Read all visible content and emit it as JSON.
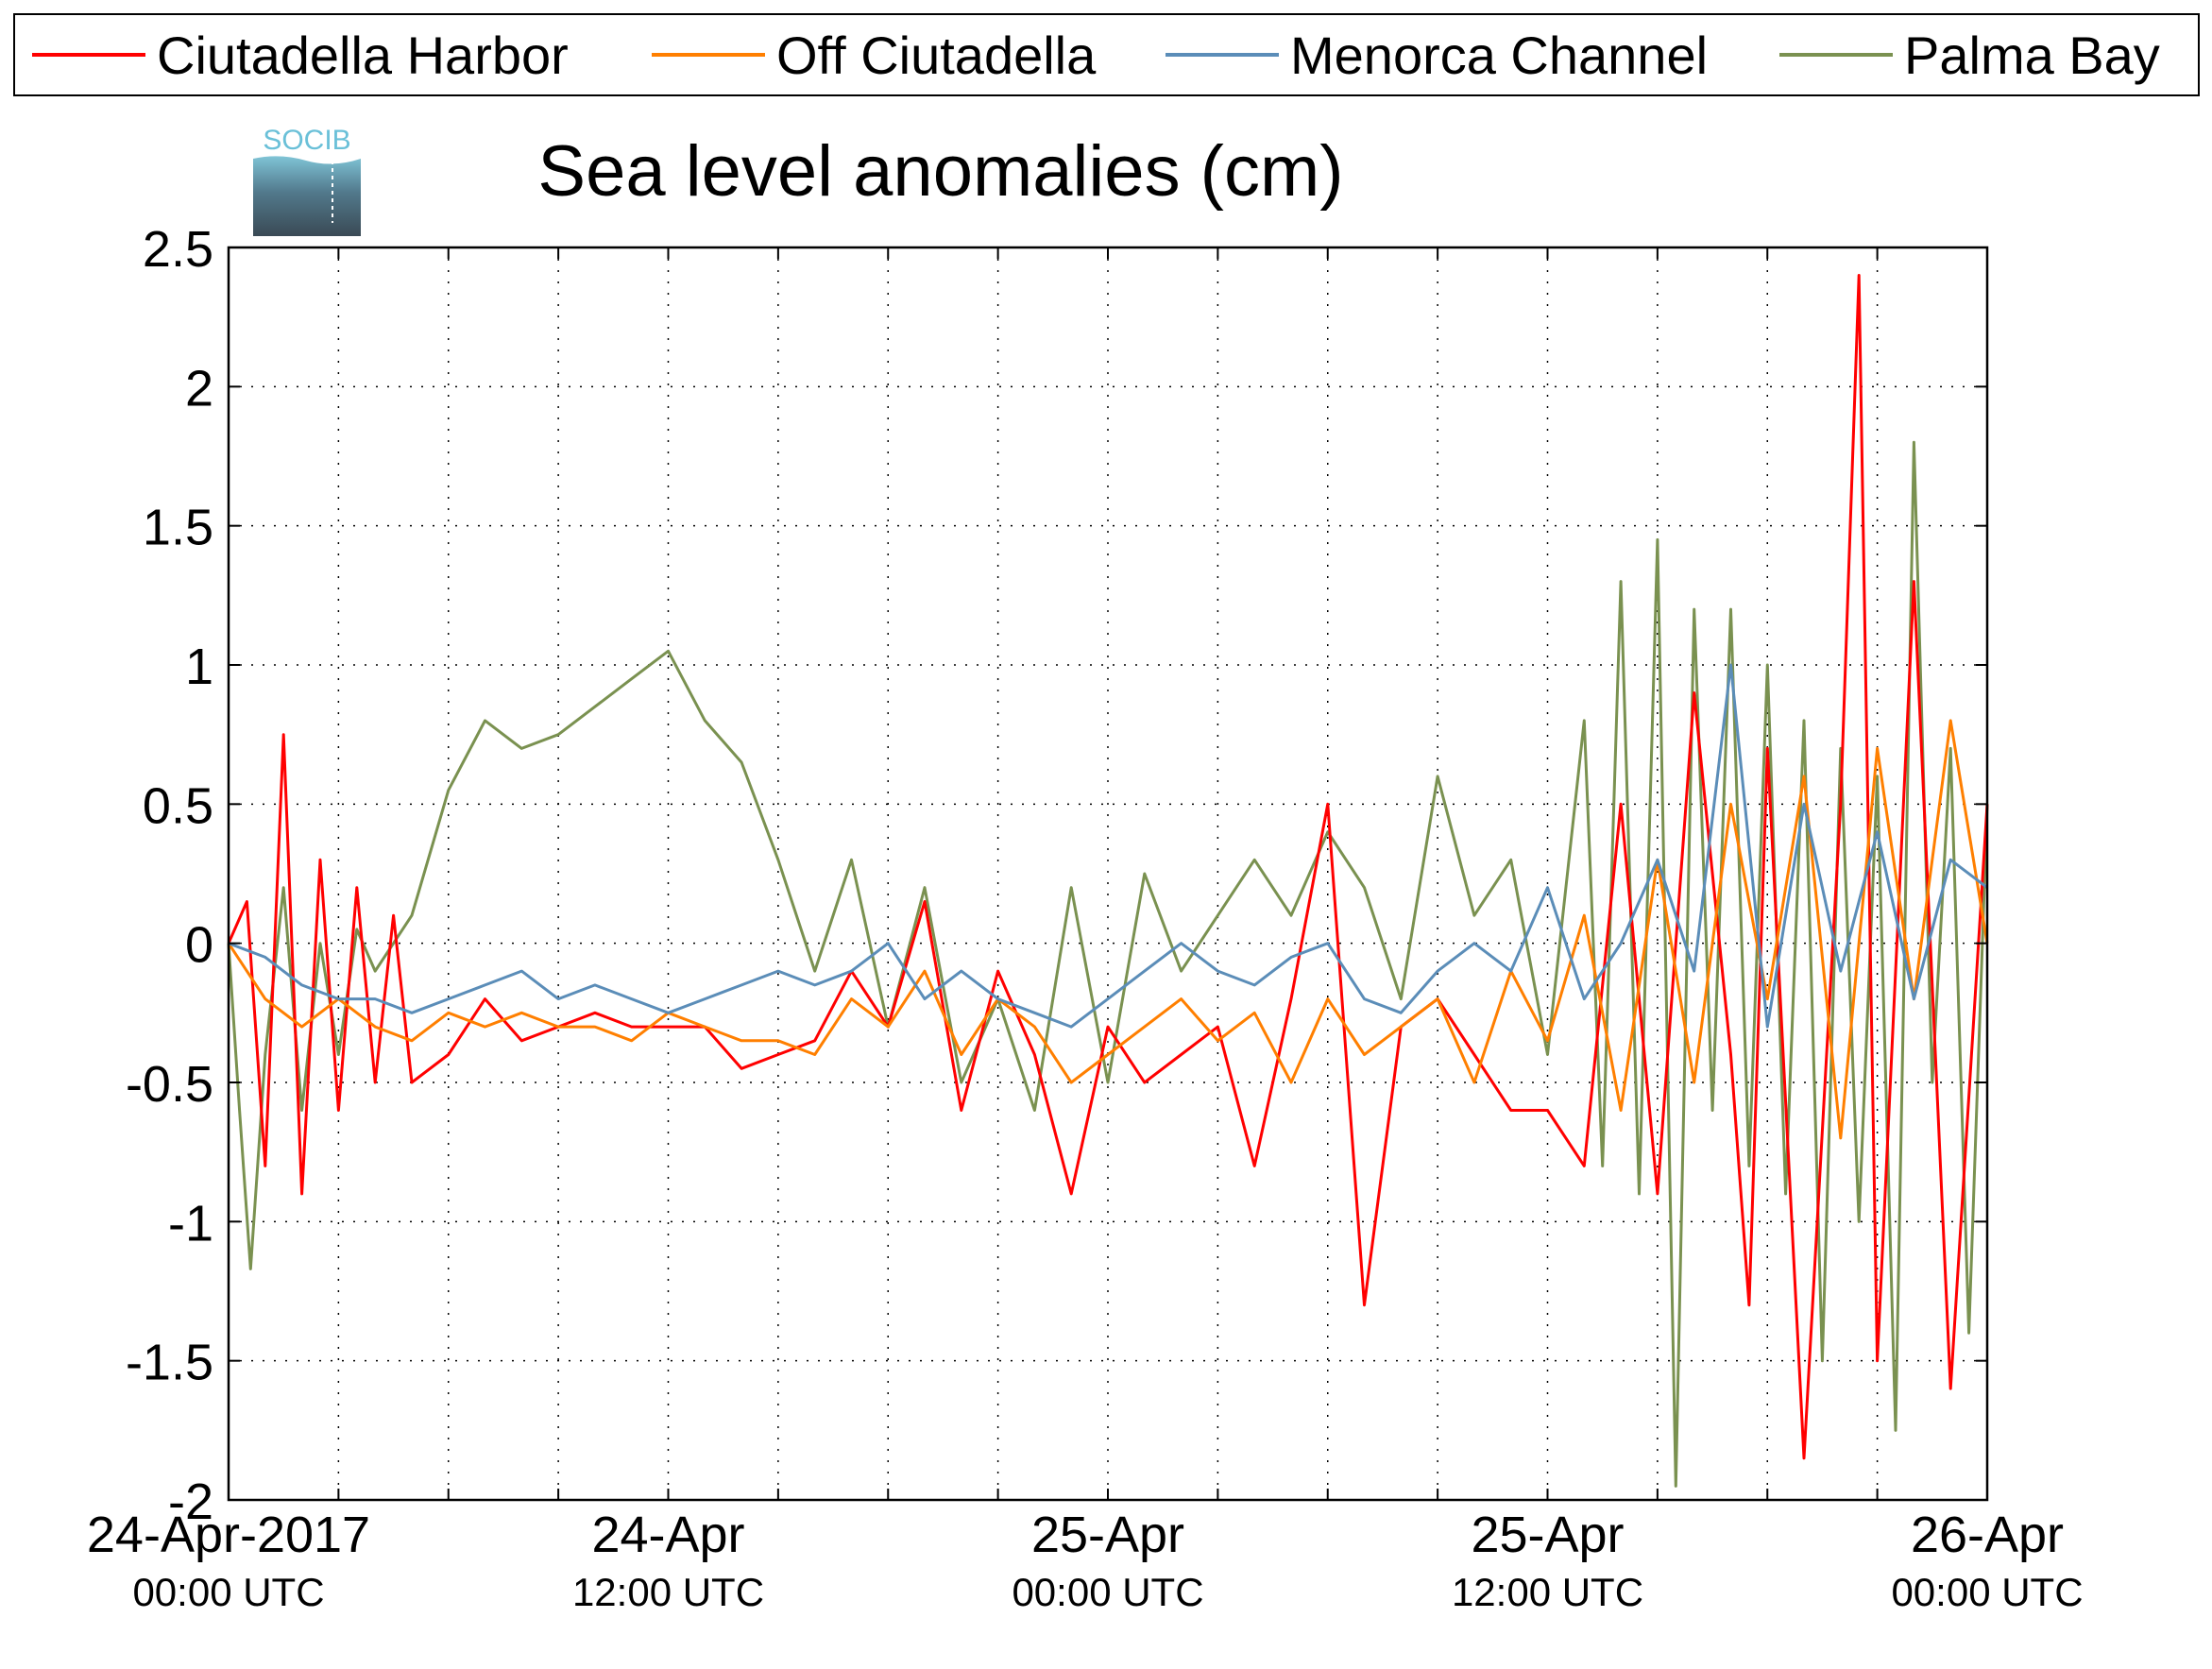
{
  "chart_data": {
    "type": "line",
    "title": "Sea level anomalies (cm)",
    "xlabel": "",
    "ylabel": "",
    "ylim": [
      -2,
      2.5
    ],
    "yticks": [
      "2.5",
      "2",
      "1.5",
      "1",
      "0.5",
      "0",
      "-0.5",
      "-1",
      "-1.5",
      "-2"
    ],
    "ytick_values": [
      2.5,
      2,
      1.5,
      1,
      0.5,
      0,
      -0.5,
      -1,
      -1.5,
      -2
    ],
    "xlim_hours": [
      0,
      48
    ],
    "xticks": [
      {
        "hour": 0,
        "date": "24-Apr-2017",
        "time": "00:00 UTC"
      },
      {
        "hour": 12,
        "date": "24-Apr",
        "time": "12:00 UTC"
      },
      {
        "hour": 24,
        "date": "25-Apr",
        "time": "00:00 UTC"
      },
      {
        "hour": 36,
        "date": "25-Apr",
        "time": "12:00 UTC"
      },
      {
        "hour": 48,
        "date": "26-Apr",
        "time": "00:00 UTC"
      }
    ],
    "grid": true,
    "legend_position": "top",
    "series": [
      {
        "name": "Ciutadella Harbor",
        "color": "#ff0000",
        "x": [
          0,
          0.5,
          1,
          1.5,
          2,
          2.5,
          3,
          3.5,
          4,
          4.5,
          5,
          6,
          7,
          8,
          9,
          10,
          11,
          12,
          13,
          14,
          15,
          16,
          17,
          18,
          19,
          20,
          21,
          22,
          23,
          24,
          25,
          26,
          27,
          28,
          29,
          30,
          31,
          32,
          33,
          34,
          35,
          36,
          37,
          38,
          39,
          40,
          41,
          41.5,
          42,
          43,
          44,
          44.5,
          45,
          46,
          47,
          48
        ],
        "y": [
          0,
          0.15,
          -0.8,
          0.75,
          -0.9,
          0.3,
          -0.6,
          0.2,
          -0.5,
          0.1,
          -0.5,
          -0.4,
          -0.2,
          -0.35,
          -0.3,
          -0.25,
          -0.3,
          -0.3,
          -0.3,
          -0.45,
          -0.4,
          -0.35,
          -0.1,
          -0.3,
          0.15,
          -0.6,
          -0.1,
          -0.4,
          -0.9,
          -0.3,
          -0.5,
          -0.4,
          -0.3,
          -0.8,
          -0.2,
          0.5,
          -1.3,
          -0.3,
          -0.2,
          -0.4,
          -0.6,
          -0.6,
          -0.8,
          0.5,
          -0.9,
          0.9,
          -0.4,
          -1.3,
          0.7,
          -1.85,
          0.5,
          2.4,
          -1.5,
          1.3,
          -1.6,
          0.5
        ]
      },
      {
        "name": "Off Ciutadella",
        "color": "#ff7f00",
        "x": [
          0,
          1,
          2,
          3,
          4,
          5,
          6,
          7,
          8,
          9,
          10,
          11,
          12,
          13,
          14,
          15,
          16,
          17,
          18,
          19,
          20,
          21,
          22,
          23,
          24,
          25,
          26,
          27,
          28,
          29,
          30,
          31,
          32,
          33,
          34,
          35,
          36,
          37,
          38,
          39,
          40,
          41,
          42,
          43,
          44,
          45,
          46,
          47,
          48
        ],
        "y": [
          0,
          -0.2,
          -0.3,
          -0.2,
          -0.3,
          -0.35,
          -0.25,
          -0.3,
          -0.25,
          -0.3,
          -0.3,
          -0.35,
          -0.25,
          -0.3,
          -0.35,
          -0.35,
          -0.4,
          -0.2,
          -0.3,
          -0.1,
          -0.4,
          -0.2,
          -0.3,
          -0.5,
          -0.4,
          -0.3,
          -0.2,
          -0.35,
          -0.25,
          -0.5,
          -0.2,
          -0.4,
          -0.3,
          -0.2,
          -0.5,
          -0.1,
          -0.35,
          0.1,
          -0.6,
          0.3,
          -0.5,
          0.5,
          -0.2,
          0.6,
          -0.7,
          0.7,
          -0.2,
          0.8,
          0
        ]
      },
      {
        "name": "Menorca Channel",
        "color": "#5b8db8",
        "x": [
          0,
          1,
          2,
          3,
          4,
          5,
          6,
          7,
          8,
          9,
          10,
          11,
          12,
          13,
          14,
          15,
          16,
          17,
          18,
          19,
          20,
          21,
          22,
          23,
          24,
          25,
          26,
          27,
          28,
          29,
          30,
          31,
          32,
          33,
          34,
          35,
          36,
          37,
          38,
          39,
          40,
          41,
          42,
          43,
          44,
          45,
          46,
          47,
          48
        ],
        "y": [
          0,
          -0.05,
          -0.15,
          -0.2,
          -0.2,
          -0.25,
          -0.2,
          -0.15,
          -0.1,
          -0.2,
          -0.15,
          -0.2,
          -0.25,
          -0.2,
          -0.15,
          -0.1,
          -0.15,
          -0.1,
          0,
          -0.2,
          -0.1,
          -0.2,
          -0.25,
          -0.3,
          -0.2,
          -0.1,
          0,
          -0.1,
          -0.15,
          -0.05,
          0,
          -0.2,
          -0.25,
          -0.1,
          0,
          -0.1,
          0.2,
          -0.2,
          0,
          0.3,
          -0.1,
          1.0,
          -0.3,
          0.5,
          -0.1,
          0.4,
          -0.2,
          0.3,
          0.2
        ]
      },
      {
        "name": "Palma Bay",
        "color": "#7a9150",
        "x": [
          0,
          0.3,
          0.6,
          1,
          1.5,
          2,
          2.5,
          3,
          3.5,
          4,
          5,
          6,
          7,
          8,
          9,
          10,
          11,
          12,
          13,
          14,
          15,
          16,
          17,
          18,
          19,
          20,
          21,
          22,
          23,
          24,
          25,
          26,
          27,
          28,
          29,
          30,
          31,
          32,
          33,
          34,
          35,
          36,
          37,
          37.5,
          38,
          38.5,
          39,
          39.5,
          40,
          40.5,
          41,
          41.5,
          42,
          42.5,
          43,
          43.5,
          44,
          44.5,
          45,
          45.5,
          46,
          46.5,
          47,
          47.5,
          48
        ],
        "y": [
          0,
          -0.6,
          -1.17,
          -0.4,
          0.2,
          -0.6,
          0,
          -0.4,
          0.05,
          -0.1,
          0.1,
          0.55,
          0.8,
          0.7,
          0.75,
          0.85,
          0.95,
          1.05,
          0.8,
          0.65,
          0.3,
          -0.1,
          0.3,
          -0.3,
          0.2,
          -0.5,
          -0.2,
          -0.6,
          0.2,
          -0.5,
          0.25,
          -0.1,
          0.1,
          0.3,
          0.1,
          0.4,
          0.2,
          -0.2,
          0.6,
          0.1,
          0.3,
          -0.4,
          0.8,
          -0.8,
          1.3,
          -0.9,
          1.45,
          -1.95,
          1.2,
          -0.6,
          1.2,
          -0.8,
          1.0,
          -0.9,
          0.8,
          -1.5,
          0.7,
          -1.0,
          0.6,
          -1.75,
          1.8,
          -0.5,
          0.7,
          -1.4,
          0.5
        ]
      }
    ]
  },
  "logo": {
    "text": "SOCIB"
  }
}
